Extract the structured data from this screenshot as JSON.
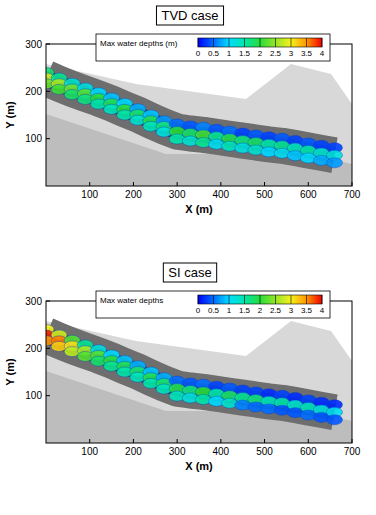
{
  "chart_data": [
    {
      "type": "map",
      "title": "TVD case",
      "x_label": "X (m)",
      "y_label": "Y (m)",
      "xlim": [
        0,
        700
      ],
      "ylim": [
        0,
        300
      ],
      "xticks": [
        100,
        200,
        300,
        400,
        500,
        600,
        700
      ],
      "yticks": [
        100,
        200,
        300
      ],
      "colorbar_label": "Max water depths (m)",
      "colorbar_range": [
        0,
        4
      ],
      "colorbar_ticks": [
        0,
        0.5,
        1,
        1.5,
        2,
        2.5,
        3,
        3.5,
        4
      ],
      "x": [
        0,
        0,
        0,
        30,
        30,
        30,
        60,
        60,
        60,
        90,
        90,
        90,
        120,
        120,
        120,
        150,
        150,
        150,
        180,
        180,
        180,
        210,
        210,
        210,
        240,
        240,
        240,
        270,
        270,
        270,
        300,
        300,
        300,
        330,
        330,
        330,
        360,
        360,
        360,
        390,
        390,
        390,
        420,
        420,
        420,
        450,
        450,
        450,
        480,
        480,
        480,
        510,
        510,
        510,
        540,
        540,
        540,
        570,
        570,
        570,
        600,
        600,
        600,
        630,
        630,
        630,
        660,
        660,
        660
      ],
      "y": [
        240,
        228,
        216,
        228,
        216,
        204,
        217,
        205,
        193,
        207,
        195,
        183,
        197,
        185,
        173,
        186,
        174,
        162,
        174,
        162,
        150,
        163,
        151,
        139,
        150,
        138,
        126,
        138,
        126,
        114,
        131,
        115,
        99,
        127,
        111,
        95,
        124,
        108,
        92,
        120,
        104,
        88,
        116,
        100,
        84,
        112,
        96,
        80,
        108,
        92,
        76,
        104,
        88,
        72,
        101,
        85,
        69,
        96,
        80,
        64,
        91,
        75,
        59,
        86,
        70,
        54,
        81,
        65,
        49
      ],
      "values": [
        1.8,
        2.8,
        2.3,
        1.6,
        2.6,
        2.1,
        1.3,
        2.3,
        1.8,
        1.2,
        2.2,
        1.7,
        1.0,
        2.0,
        1.5,
        0.9,
        1.9,
        1.4,
        1.0,
        2.0,
        1.5,
        0.8,
        1.8,
        1.3,
        0.9,
        1.9,
        1.4,
        0.7,
        1.7,
        1.2,
        0.5,
        2.0,
        1.5,
        0.4,
        1.8,
        1.3,
        0.6,
        2.1,
        1.6,
        0.4,
        1.6,
        1.1,
        0.5,
        1.9,
        1.4,
        0.3,
        1.7,
        1.2,
        0.4,
        1.8,
        1.3,
        0.3,
        1.5,
        1.0,
        0.4,
        1.6,
        1.1,
        0.3,
        1.4,
        0.9,
        0.4,
        1.5,
        1.0,
        0.3,
        1.3,
        0.8,
        0.3,
        1.2,
        0.7
      ]
    },
    {
      "type": "map",
      "title": "SI case",
      "x_label": "X (m)",
      "y_label": "Y (m)",
      "xlim": [
        0,
        700
      ],
      "ylim": [
        0,
        300
      ],
      "xticks": [
        100,
        200,
        300,
        400,
        500,
        600,
        700
      ],
      "yticks": [
        100,
        200,
        300
      ],
      "colorbar_label": "Max water depths",
      "colorbar_range": [
        0,
        4
      ],
      "colorbar_ticks": [
        0,
        0.5,
        1,
        1.5,
        2,
        2.5,
        3,
        3.5,
        4
      ],
      "x": [
        0,
        0,
        0,
        30,
        30,
        30,
        60,
        60,
        60,
        90,
        90,
        90,
        120,
        120,
        120,
        150,
        150,
        150,
        180,
        180,
        180,
        210,
        210,
        210,
        240,
        240,
        240,
        270,
        270,
        270,
        300,
        300,
        300,
        330,
        330,
        330,
        360,
        360,
        360,
        390,
        390,
        390,
        420,
        420,
        420,
        450,
        450,
        450,
        480,
        480,
        480,
        510,
        510,
        510,
        540,
        540,
        540,
        570,
        570,
        570,
        600,
        600,
        600,
        630,
        630,
        630,
        660,
        660,
        660
      ],
      "y": [
        240,
        228,
        216,
        228,
        216,
        204,
        217,
        205,
        193,
        207,
        195,
        183,
        197,
        185,
        173,
        186,
        174,
        162,
        174,
        162,
        150,
        163,
        151,
        139,
        150,
        138,
        126,
        138,
        126,
        114,
        131,
        115,
        99,
        127,
        111,
        95,
        124,
        108,
        92,
        120,
        104,
        88,
        116,
        100,
        84,
        112,
        96,
        80,
        108,
        92,
        76,
        104,
        88,
        72,
        101,
        85,
        69,
        96,
        80,
        64,
        91,
        75,
        59,
        86,
        70,
        54,
        81,
        65,
        49
      ],
      "values": [
        3.0,
        3.9,
        3.5,
        2.8,
        3.6,
        3.2,
        2.2,
        3.1,
        2.7,
        1.6,
        2.6,
        2.2,
        1.2,
        2.2,
        1.8,
        1.0,
        2.0,
        1.6,
        0.9,
        1.9,
        1.5,
        0.8,
        1.8,
        1.4,
        0.9,
        1.9,
        1.5,
        0.8,
        1.8,
        1.4,
        0.5,
        1.9,
        1.4,
        0.4,
        1.7,
        1.2,
        0.5,
        2.0,
        1.5,
        0.3,
        1.5,
        1.0,
        0.4,
        1.8,
        1.3,
        0.3,
        1.6,
        0.6,
        0.3,
        1.7,
        0.5,
        0.2,
        1.4,
        0.5,
        0.3,
        1.5,
        0.4,
        0.2,
        1.3,
        0.4,
        0.3,
        1.4,
        0.5,
        0.2,
        1.2,
        0.4,
        0.2,
        1.1,
        0.4
      ]
    }
  ]
}
